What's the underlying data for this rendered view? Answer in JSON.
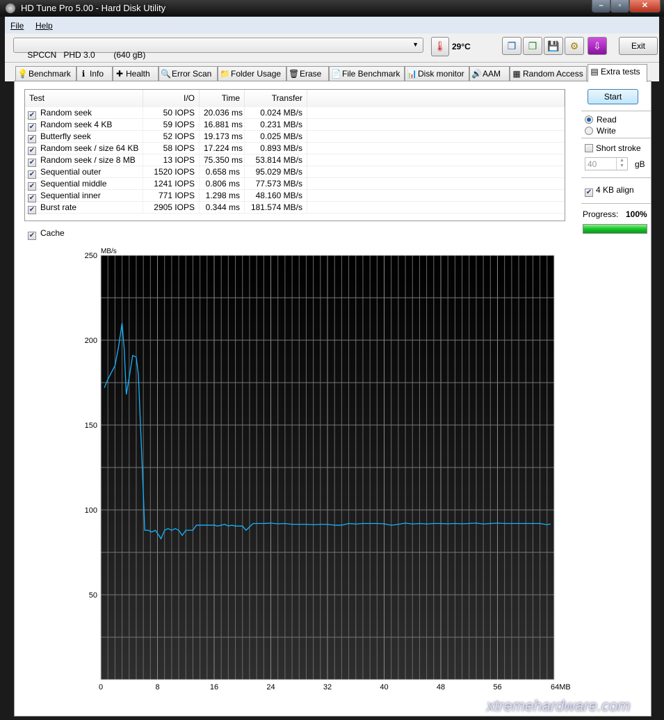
{
  "window": {
    "title": "HD Tune Pro 5.00 - Hard Disk Utility",
    "controls": [
      "minimize",
      "maximize",
      "close"
    ]
  },
  "menu": [
    "File",
    "Help"
  ],
  "toolbar": {
    "drive": "SPCCN   PHD 3.0        (640 gB)",
    "temperature": "29°C",
    "exit_label": "Exit",
    "icons": [
      "copy-info-icon",
      "copy-screenshot-icon",
      "save-icon",
      "options-icon",
      "download-icon"
    ]
  },
  "tabs": [
    {
      "label": "Benchmark",
      "icon": "bulb-icon",
      "glyph": "💡"
    },
    {
      "label": "Info",
      "icon": "info-icon",
      "glyph": "ℹ"
    },
    {
      "label": "Health",
      "icon": "health-cross-icon",
      "glyph": "✚"
    },
    {
      "label": "Error Scan",
      "icon": "magnifier-icon",
      "glyph": "🔍"
    },
    {
      "label": "Folder Usage",
      "icon": "folder-icon",
      "glyph": "📁"
    },
    {
      "label": "Erase",
      "icon": "trash-icon",
      "glyph": "🗑"
    },
    {
      "label": "File Benchmark",
      "icon": "file-benchmark-icon",
      "glyph": "📄"
    },
    {
      "label": "Disk monitor",
      "icon": "disk-monitor-icon",
      "glyph": "📊"
    },
    {
      "label": "AAM",
      "icon": "speaker-icon",
      "glyph": "🔊"
    },
    {
      "label": "Random Access",
      "icon": "random-access-icon",
      "glyph": "▦"
    },
    {
      "label": "Extra tests",
      "icon": "extra-tests-icon",
      "glyph": "▤",
      "active": true
    }
  ],
  "results": {
    "headers": [
      "Test",
      "I/O",
      "Time",
      "Transfer"
    ],
    "rows": [
      {
        "test": "Random seek",
        "io": "50 IOPS",
        "time": "20.036 ms",
        "transfer": "0.024 MB/s",
        "checked": true
      },
      {
        "test": "Random seek 4 KB",
        "io": "59 IOPS",
        "time": "16.881 ms",
        "transfer": "0.231 MB/s",
        "checked": true
      },
      {
        "test": "Butterfly seek",
        "io": "52 IOPS",
        "time": "19.173 ms",
        "transfer": "0.025 MB/s",
        "checked": true
      },
      {
        "test": "Random seek / size 64 KB",
        "io": "58 IOPS",
        "time": "17.224 ms",
        "transfer": "0.893 MB/s",
        "checked": true
      },
      {
        "test": "Random seek / size 8 MB",
        "io": "13 IOPS",
        "time": "75.350 ms",
        "transfer": "53.814 MB/s",
        "checked": true
      },
      {
        "test": "Sequential outer",
        "io": "1520 IOPS",
        "time": "0.658 ms",
        "transfer": "95.029 MB/s",
        "checked": true
      },
      {
        "test": "Sequential middle",
        "io": "1241 IOPS",
        "time": "0.806 ms",
        "transfer": "77.573 MB/s",
        "checked": true
      },
      {
        "test": "Sequential inner",
        "io": "771 IOPS",
        "time": "1.298 ms",
        "transfer": "48.160 MB/s",
        "checked": true
      },
      {
        "test": "Burst rate",
        "io": "2905 IOPS",
        "time": "0.344 ms",
        "transfer": "181.574 MB/s",
        "checked": true
      }
    ]
  },
  "cache": {
    "label": "Cache",
    "checked": true
  },
  "side": {
    "start_label": "Start",
    "read_label": "Read",
    "write_label": "Write",
    "mode": "Read",
    "short_stroke_label": "Short stroke",
    "short_stroke_checked": false,
    "short_stroke_value": "40",
    "unit": "gB",
    "align_label": "4 KB align",
    "align_checked": true,
    "progress_label": "Progress:",
    "progress_text": "100%",
    "progress": 100,
    "progress_color": "#16c52a"
  },
  "watermark": "xtremehardware.com",
  "chart_data": {
    "type": "line",
    "ylabel": "MB/s",
    "xlabel": "",
    "x_unit_label": "64MB",
    "xlim": [
      0,
      64
    ],
    "ylim": [
      0,
      250
    ],
    "xticks": [
      "0",
      "8",
      "16",
      "24",
      "32",
      "40",
      "48",
      "56",
      "64MB"
    ],
    "yticks": [
      "50",
      "100",
      "150",
      "200",
      "250"
    ],
    "grid": true,
    "line_color": "#14b4ff",
    "series": [
      {
        "points": [
          [
            0.5,
            172
          ],
          [
            1,
            177
          ],
          [
            1.5,
            181
          ],
          [
            2,
            185
          ],
          [
            2.5,
            196
          ],
          [
            3,
            210
          ],
          [
            3.3,
            195
          ],
          [
            3.6,
            168
          ],
          [
            4,
            178
          ],
          [
            4.5,
            191
          ],
          [
            5,
            190
          ],
          [
            5.3,
            180
          ],
          [
            5.6,
            150
          ],
          [
            6,
            110
          ],
          [
            6.2,
            88
          ],
          [
            6.7,
            88
          ],
          [
            7.2,
            87
          ],
          [
            7.7,
            88
          ],
          [
            8.2,
            85
          ],
          [
            8.5,
            83
          ],
          [
            9,
            88
          ],
          [
            9.5,
            89
          ],
          [
            10,
            88
          ],
          [
            10.5,
            89
          ],
          [
            11,
            88
          ],
          [
            11.5,
            85
          ],
          [
            12,
            88
          ],
          [
            12.5,
            88
          ],
          [
            13,
            88
          ],
          [
            13.5,
            91
          ],
          [
            14,
            91
          ],
          [
            15,
            91
          ],
          [
            16,
            91
          ],
          [
            16.5,
            90.5
          ],
          [
            17,
            91
          ],
          [
            17.5,
            91.5
          ],
          [
            18,
            90.5
          ],
          [
            18.5,
            91
          ],
          [
            19,
            90.5
          ],
          [
            20,
            90.5
          ],
          [
            20.5,
            88
          ],
          [
            21.5,
            92
          ],
          [
            22,
            92
          ],
          [
            23,
            92
          ],
          [
            24,
            92.2
          ],
          [
            25,
            91.8
          ],
          [
            26,
            92
          ],
          [
            27,
            91.5
          ],
          [
            28,
            91.5
          ],
          [
            29,
            91.5
          ],
          [
            30,
            91.3
          ],
          [
            31,
            91.5
          ],
          [
            32,
            91.5
          ],
          [
            33,
            91
          ],
          [
            34,
            91
          ],
          [
            35,
            92
          ],
          [
            36,
            91.7
          ],
          [
            37,
            92
          ],
          [
            38,
            92
          ],
          [
            39,
            92
          ],
          [
            40,
            91.8
          ],
          [
            41,
            91
          ],
          [
            42,
            91.5
          ],
          [
            43,
            92.2
          ],
          [
            44,
            91.7
          ],
          [
            45,
            92
          ],
          [
            46,
            91.7
          ],
          [
            47,
            92
          ],
          [
            48,
            92
          ],
          [
            49,
            91.8
          ],
          [
            50,
            92
          ],
          [
            51,
            91.8
          ],
          [
            52,
            92
          ],
          [
            53,
            92.2
          ],
          [
            54,
            91.7
          ],
          [
            55,
            92
          ],
          [
            56,
            92.2
          ],
          [
            57,
            92
          ],
          [
            58,
            92
          ],
          [
            59,
            92
          ],
          [
            60,
            92
          ],
          [
            61,
            92
          ],
          [
            62,
            92
          ],
          [
            63,
            91.3
          ],
          [
            63.5,
            91.7
          ]
        ]
      }
    ]
  }
}
